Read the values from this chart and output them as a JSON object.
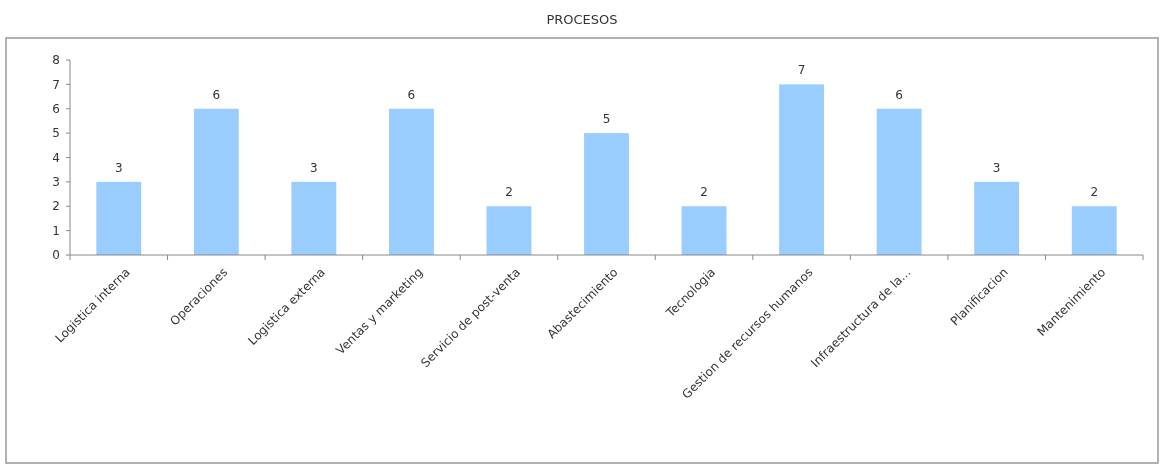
{
  "chart_data": {
    "type": "bar",
    "title": "PROCESOS",
    "categories": [
      "Logistica interna",
      "Operaciones",
      "Logistica externa",
      "Ventas y marketing",
      "Servicio de post-venta",
      "Abastecimiento",
      "Tecnologia",
      "Gestion de recursos humanos",
      "Infraestructura de la...",
      "Planificacion",
      "Mantenimiento"
    ],
    "values": [
      3,
      6,
      3,
      6,
      2,
      5,
      2,
      7,
      6,
      3,
      2
    ],
    "color": "#99ccff",
    "ylim": [
      0,
      8
    ],
    "yticks": [
      0,
      1,
      2,
      3,
      4,
      5,
      6,
      7,
      8
    ],
    "data_labels": true
  }
}
